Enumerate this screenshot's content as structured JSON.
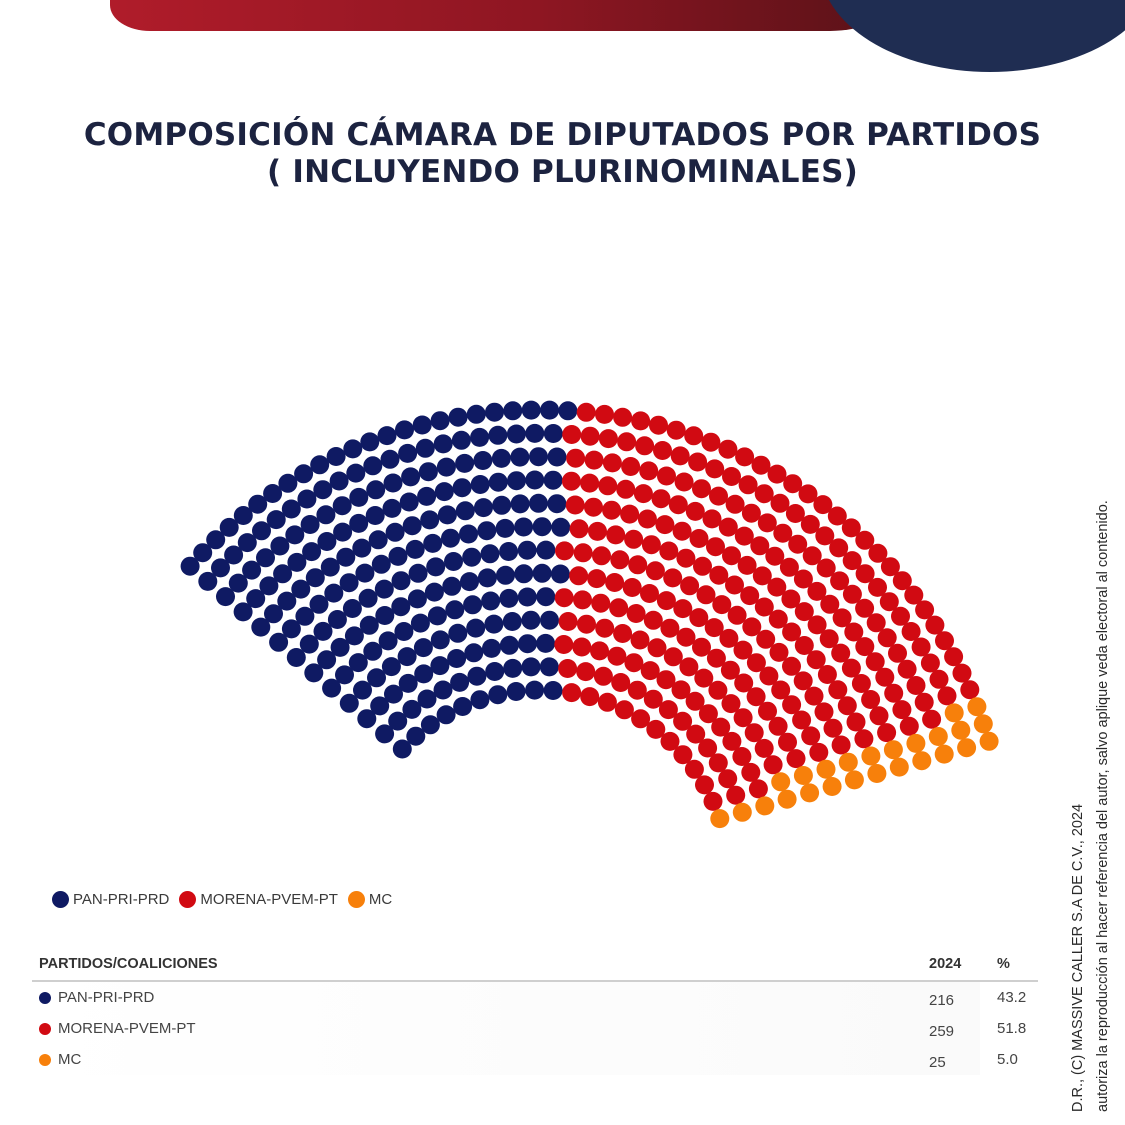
{
  "title": {
    "line1": "COMPOSICIÓN CÁMARA DE DIPUTADOS POR PARTIDOS",
    "line2": "( INCLUYENDO PLURINOMINALES)"
  },
  "colors": {
    "pan_pri_prd": "#0f1a63",
    "morena_pvem_pt": "#d10a12",
    "mc": "#f7800b"
  },
  "chart_data": {
    "type": "parliament",
    "total_seats": 500,
    "series": [
      {
        "name": "PAN-PRI-PRD",
        "seats": 216,
        "percent": 43.2,
        "color": "#0f1a63"
      },
      {
        "name": "MORENA-PVEM-PT",
        "seats": 259,
        "percent": 51.8,
        "color": "#d10a12"
      },
      {
        "name": "MC",
        "seats": 25,
        "percent": 5.0,
        "color": "#f7800b"
      }
    ],
    "legend": [
      "PAN-PRI-PRD",
      "MORENA-PVEM-PT",
      "MC"
    ],
    "legend_placement": "bottom-left"
  },
  "table": {
    "headers": {
      "party": "PARTIDOS/COALICIONES",
      "year": "2024",
      "percent": "%"
    },
    "rows": [
      {
        "name": "PAN-PRI-PRD",
        "seats": "216",
        "percent": "43.2",
        "color": "#0f1a63"
      },
      {
        "name": "MORENA-PVEM-PT",
        "seats": "259",
        "percent": "51.8",
        "color": "#d10a12"
      },
      {
        "name": "MC",
        "seats": "25",
        "percent": "5.0",
        "color": "#f7800b"
      }
    ]
  },
  "credit": {
    "line1": "D.R., (C) MASSIVE CALLER S.A DE C.V., 2024",
    "line2": "autoriza la reproducción al hacer referencia del autor, salvo aplique veda electoral al contenido."
  }
}
